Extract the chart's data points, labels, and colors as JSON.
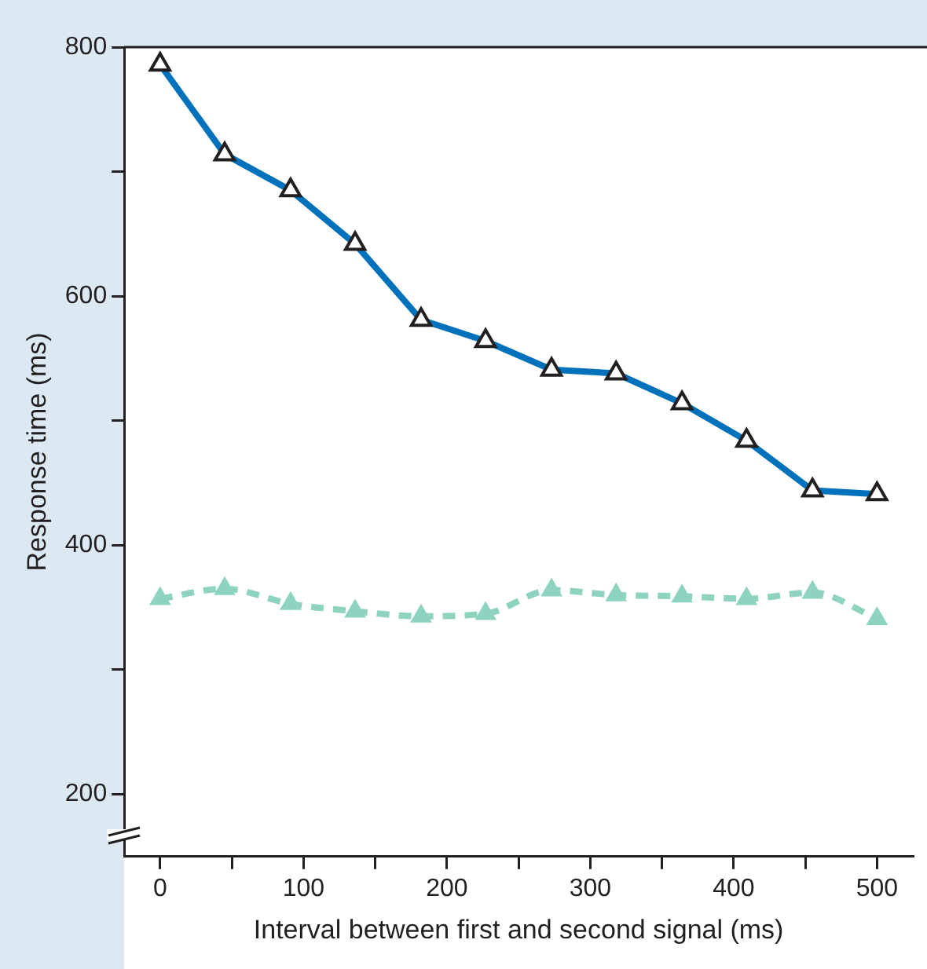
{
  "chart_data": {
    "type": "line",
    "xlabel": "Interval between first and second signal (ms)",
    "ylabel": "Response time (ms)",
    "xlim": [
      -25,
      525
    ],
    "xticks": [
      0,
      {
        "value": 50,
        "label": null
      },
      100,
      {
        "value": 150,
        "label": null
      },
      200,
      {
        "value": 250,
        "label": null
      },
      300,
      {
        "value": 350,
        "label": null
      },
      400,
      {
        "value": 450,
        "label": null
      },
      500
    ],
    "ylim": [
      150,
      800
    ],
    "yticks": [
      200,
      {
        "value": 300,
        "label": null
      },
      400,
      {
        "value": 500,
        "label": null
      },
      600,
      {
        "value": 700,
        "label": null
      },
      800
    ],
    "grid": false,
    "legend": false,
    "marker": "triangle",
    "series": [
      {
        "color": "#0072bc",
        "line_style": "solid",
        "x": [
          0,
          45,
          91,
          136,
          182,
          227,
          273,
          318,
          364,
          409,
          455,
          500
        ],
        "values": [
          786,
          714,
          685,
          642,
          581,
          564,
          541,
          538,
          514,
          484,
          444,
          441
        ]
      },
      {
        "color": "#8dd3c0",
        "line_style": "dashed",
        "x": [
          0,
          45,
          91,
          136,
          182,
          227,
          273,
          318,
          364,
          409,
          455,
          500
        ],
        "values": [
          357,
          365,
          353,
          347,
          343,
          345,
          364,
          360,
          359,
          357,
          362,
          341
        ]
      }
    ]
  }
}
